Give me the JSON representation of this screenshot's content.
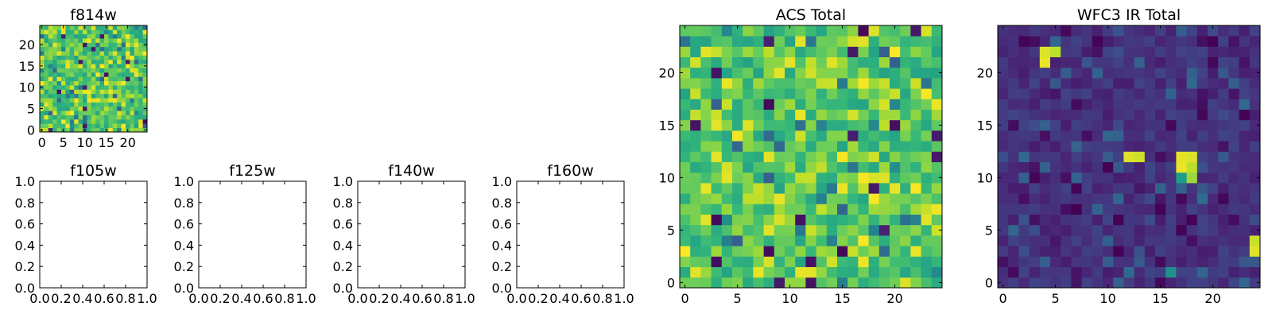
{
  "figure": {
    "description_free": true
  },
  "chart_data": [
    {
      "type": "heatmap",
      "key": "f814w",
      "title": "f814w",
      "grid": [
        25,
        25
      ],
      "seed": 814,
      "colormap": "viridis",
      "value_mode": "acs",
      "xlim": [
        -0.5,
        24.5
      ],
      "ylim": [
        -0.5,
        24.5
      ],
      "xticks": [
        0,
        5,
        10,
        15,
        20
      ],
      "yticks": [
        0,
        5,
        10,
        15,
        20
      ],
      "xtick_labels": [
        "0",
        "5",
        "10",
        "15",
        "20"
      ],
      "ytick_labels": [
        "0",
        "5",
        "10",
        "15",
        "20"
      ]
    },
    {
      "type": "empty",
      "key": "f105w",
      "title": "f105w",
      "xlim": [
        0,
        1
      ],
      "ylim": [
        0,
        1
      ],
      "xticks": [
        0,
        0.2,
        0.4,
        0.6,
        0.8,
        1.0
      ],
      "yticks": [
        0,
        0.2,
        0.4,
        0.6,
        0.8,
        1.0
      ],
      "xtick_labels": [
        "0.0",
        "0.2",
        "0.4",
        "0.6",
        "0.8",
        "1.0"
      ],
      "ytick_labels": [
        "0.0",
        "0.2",
        "0.4",
        "0.6",
        "0.8",
        "1.0"
      ]
    },
    {
      "type": "empty",
      "key": "f125w",
      "title": "f125w",
      "xlim": [
        0,
        1
      ],
      "ylim": [
        0,
        1
      ],
      "xticks": [
        0,
        0.2,
        0.4,
        0.6,
        0.8,
        1.0
      ],
      "yticks": [
        0,
        0.2,
        0.4,
        0.6,
        0.8,
        1.0
      ],
      "xtick_labels": [
        "0.0",
        "0.2",
        "0.4",
        "0.6",
        "0.8",
        "1.0"
      ],
      "ytick_labels": [
        "0.0",
        "0.2",
        "0.4",
        "0.6",
        "0.8",
        "1.0"
      ]
    },
    {
      "type": "empty",
      "key": "f140w",
      "title": "f140w",
      "xlim": [
        0,
        1
      ],
      "ylim": [
        0,
        1
      ],
      "xticks": [
        0,
        0.2,
        0.4,
        0.6,
        0.8,
        1.0
      ],
      "yticks": [
        0,
        0.2,
        0.4,
        0.6,
        0.8,
        1.0
      ],
      "xtick_labels": [
        "0.0",
        "0.2",
        "0.4",
        "0.6",
        "0.8",
        "1.0"
      ],
      "ytick_labels": [
        "0.0",
        "0.2",
        "0.4",
        "0.6",
        "0.8",
        "1.0"
      ]
    },
    {
      "type": "empty",
      "key": "f160w",
      "title": "f160w",
      "xlim": [
        0,
        1
      ],
      "ylim": [
        0,
        1
      ],
      "xticks": [
        0,
        0.2,
        0.4,
        0.6,
        0.8,
        1.0
      ],
      "yticks": [
        0,
        0.2,
        0.4,
        0.6,
        0.8,
        1.0
      ],
      "xtick_labels": [
        "0.0",
        "0.2",
        "0.4",
        "0.6",
        "0.8",
        "1.0"
      ],
      "ytick_labels": [
        "0.0",
        "0.2",
        "0.4",
        "0.6",
        "0.8",
        "1.0"
      ]
    },
    {
      "type": "heatmap",
      "key": "acs_total",
      "title": "ACS Total",
      "grid": [
        25,
        25
      ],
      "seed": 2024,
      "colormap": "viridis",
      "value_mode": "acs",
      "xlim": [
        -0.5,
        24.5
      ],
      "ylim": [
        -0.5,
        24.5
      ],
      "xticks": [
        0,
        5,
        10,
        15,
        20
      ],
      "yticks": [
        0,
        5,
        10,
        15,
        20
      ],
      "xtick_labels": [
        "0",
        "5",
        "10",
        "15",
        "20"
      ],
      "ytick_labels": [
        "0",
        "5",
        "10",
        "15",
        "20"
      ]
    },
    {
      "type": "heatmap",
      "key": "wfc3_total",
      "title": "WFC3 IR Total",
      "grid": [
        25,
        25
      ],
      "seed": 3301,
      "colormap": "viridis",
      "value_mode": "ir",
      "hot_pixels": [
        {
          "x": 4,
          "y": 21,
          "v": 0.97
        },
        {
          "x": 4,
          "y": 22,
          "v": 0.95
        },
        {
          "x": 5,
          "y": 22,
          "v": 0.9
        },
        {
          "x": 12,
          "y": 12,
          "v": 0.95
        },
        {
          "x": 13,
          "y": 12,
          "v": 0.93
        },
        {
          "x": 17,
          "y": 11,
          "v": 0.97
        },
        {
          "x": 17,
          "y": 12,
          "v": 0.96
        },
        {
          "x": 18,
          "y": 12,
          "v": 0.95
        },
        {
          "x": 17,
          "y": 10,
          "v": 0.55
        },
        {
          "x": 18,
          "y": 11,
          "v": 0.9
        },
        {
          "x": 18,
          "y": 10,
          "v": 0.85
        },
        {
          "x": 24,
          "y": 3,
          "v": 0.95
        },
        {
          "x": 24,
          "y": 4,
          "v": 0.92
        },
        {
          "x": 16,
          "y": 1,
          "v": 0.5
        },
        {
          "x": 19,
          "y": 8,
          "v": 0.35
        }
      ],
      "xlim": [
        -0.5,
        24.5
      ],
      "ylim": [
        -0.5,
        24.5
      ],
      "xticks": [
        0,
        5,
        10,
        15,
        20
      ],
      "yticks": [
        0,
        5,
        10,
        15,
        20
      ],
      "xtick_labels": [
        "0",
        "5",
        "10",
        "15",
        "20"
      ],
      "ytick_labels": [
        "0",
        "5",
        "10",
        "15",
        "20"
      ]
    }
  ]
}
